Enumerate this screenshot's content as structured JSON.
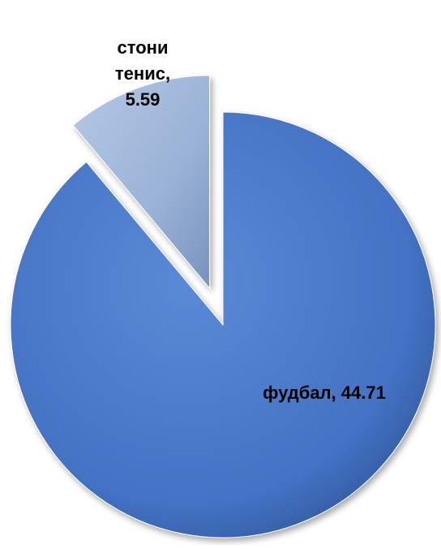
{
  "chart_data": {
    "type": "pie",
    "title": "",
    "categories": [
      "фудбал",
      "стони тенис"
    ],
    "values": [
      44.71,
      5.59
    ],
    "colors": [
      "#4472c4",
      "#95b3d7"
    ],
    "exploded": [
      false,
      true
    ],
    "labels": [
      {
        "lines": [
          "фудбал, 44.71"
        ]
      },
      {
        "lines": [
          "стони",
          "тенис,",
          "5.59"
        ]
      }
    ],
    "legend": "none",
    "style": "3d-shaded"
  }
}
